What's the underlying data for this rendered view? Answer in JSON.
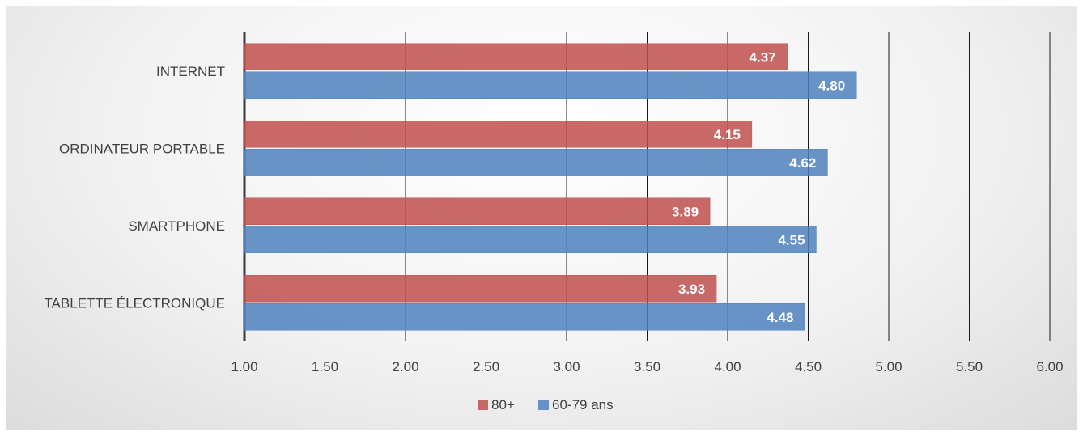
{
  "chart_data": {
    "type": "bar",
    "orientation": "horizontal",
    "categories": [
      "INTERNET",
      "ORDINATEUR PORTABLE",
      "SMARTPHONE",
      "TABLETTE ÉLECTRONIQUE"
    ],
    "series": [
      {
        "name": "80+",
        "values": [
          4.37,
          4.15,
          3.89,
          3.93
        ],
        "color": "#c0504d",
        "labels": [
          "4.37",
          "4.15",
          "3.89",
          "3.93"
        ]
      },
      {
        "name": "60-79 ans",
        "values": [
          4.8,
          4.62,
          4.55,
          4.48
        ],
        "color": "#4f81bd",
        "labels": [
          "4.80",
          "4.62",
          "4.55",
          "4.48"
        ]
      }
    ],
    "xlim": [
      1.0,
      6.0
    ],
    "xticks": [
      1.0,
      1.5,
      2.0,
      2.5,
      3.0,
      3.5,
      4.0,
      4.5,
      5.0,
      5.5,
      6.0
    ],
    "xtick_labels": [
      "1.00",
      "1.50",
      "2.00",
      "2.50",
      "3.00",
      "3.50",
      "4.00",
      "4.50",
      "5.00",
      "5.50",
      "6.00"
    ],
    "grid": true,
    "legend_position": "bottom"
  }
}
